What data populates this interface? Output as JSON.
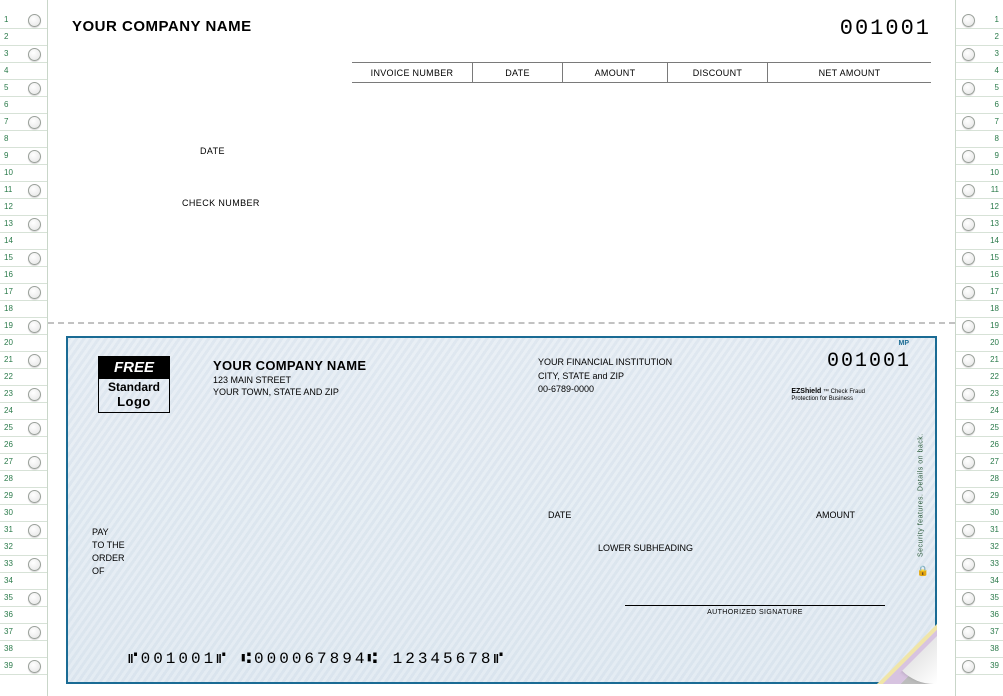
{
  "stub": {
    "company": "YOUR COMPANY NAME",
    "number": "001001",
    "columns": {
      "invoice": "INVOICE NUMBER",
      "date": "DATE",
      "amount": "AMOUNT",
      "discount": "DISCOUNT",
      "net": "NET AMOUNT"
    },
    "labels": {
      "date": "DATE",
      "check_number": "CHECK NUMBER"
    }
  },
  "check": {
    "logo": {
      "line1": "FREE",
      "line2": "Standard",
      "line3": "Logo"
    },
    "payer": {
      "name": "YOUR COMPANY NAME",
      "street": "123 MAIN STREET",
      "city": "YOUR TOWN, STATE AND ZIP"
    },
    "bank": {
      "name": "YOUR FINANCIAL INSTITUTION",
      "city": "CITY, STATE and ZIP",
      "routing": "00-6789-0000"
    },
    "number": "001001",
    "shield": {
      "brand": "EZShield",
      "line1": "Check Fraud",
      "line2": "Protection for Business"
    },
    "date_label": "DATE",
    "amount_label": "AMOUNT",
    "lower_subheading": "LOWER SUBHEADING",
    "pay_to": {
      "l1": "PAY",
      "l2": "TO THE",
      "l3": "ORDER",
      "l4": "OF"
    },
    "signature_label": "AUTHORIZED SIGNATURE",
    "micr": "⑈001001⑈  ⑆000067894⑆  12345678⑈",
    "security_text": "Security features. Details on back.",
    "mp": "MP"
  },
  "ruler": {
    "rows": 39,
    "hole_every": 2,
    "colors": {
      "number": "#2a7a4a",
      "divider": "#d7e2d7",
      "border": "#c9d6c9"
    }
  },
  "style": {
    "check_border": "#1a6b94",
    "check_bg_light": "#e9eff5",
    "check_bg_dark": "#e4ecf3",
    "perf": "#c2c2c2"
  }
}
